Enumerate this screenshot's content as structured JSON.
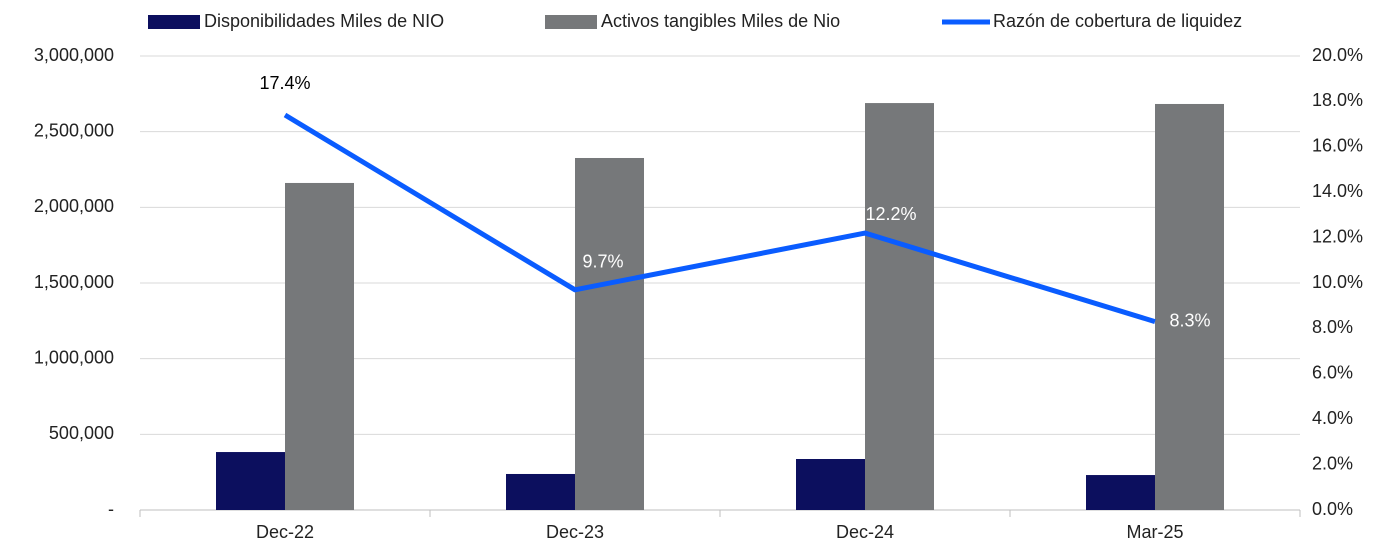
{
  "chart_data": {
    "type": "bar",
    "categories": [
      "Dec-22",
      "Dec-23",
      "Dec-24",
      "Mar-25"
    ],
    "series": [
      {
        "name": "Disponibilidades Miles de NIO",
        "color": "#0c0f5e",
        "values": [
          383000,
          238000,
          337000,
          231000
        ]
      },
      {
        "name": "Activos tangibles Miles de Nio",
        "color": "#76787a",
        "values": [
          2161000,
          2326000,
          2689000,
          2683000
        ]
      },
      {
        "name": "Razón de cobertura de liquidez",
        "color": "#0a5cff",
        "type": "line",
        "axis": "y2",
        "values": [
          17.4,
          9.7,
          12.2,
          8.3
        ],
        "value_labels": [
          "17.4%",
          "9.7%",
          "12.2%",
          "8.3%"
        ]
      }
    ],
    "ylim": [
      0,
      3000000
    ],
    "yticks": [
      {
        "value": 0,
        "label": "-"
      },
      {
        "value": 500000,
        "label": "500,000"
      },
      {
        "value": 1000000,
        "label": "1,000,000"
      },
      {
        "value": 1500000,
        "label": "1,500,000"
      },
      {
        "value": 2000000,
        "label": "2,000,000"
      },
      {
        "value": 2500000,
        "label": "2,500,000"
      },
      {
        "value": 3000000,
        "label": "3,000,000"
      }
    ],
    "y2lim": [
      0,
      20
    ],
    "y2ticks": [
      {
        "value": 0,
        "label": "0.0%"
      },
      {
        "value": 2,
        "label": "2.0%"
      },
      {
        "value": 4,
        "label": "4.0%"
      },
      {
        "value": 6,
        "label": "6.0%"
      },
      {
        "value": 8,
        "label": "8.0%"
      },
      {
        "value": 10,
        "label": "10.0%"
      },
      {
        "value": 12,
        "label": "12.0%"
      },
      {
        "value": 14,
        "label": "14.0%"
      },
      {
        "value": 16,
        "label": "16.0%"
      },
      {
        "value": 18,
        "label": "18.0%"
      },
      {
        "value": 20,
        "label": "20.0%"
      }
    ],
    "grid": true,
    "legend": "top"
  }
}
